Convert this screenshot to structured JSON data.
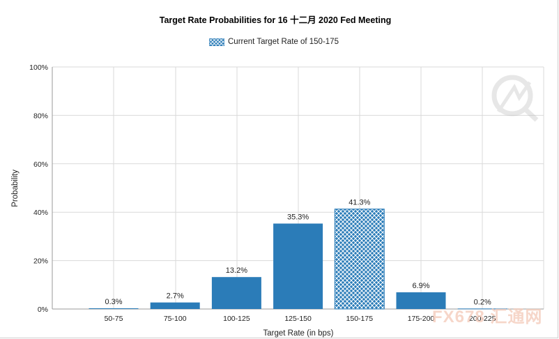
{
  "chart_data": {
    "type": "bar",
    "title": "Target Rate Probabilities for 16 十二月 2020 Fed Meeting",
    "xlabel": "Target Rate (in bps)",
    "ylabel": "Probability",
    "categories": [
      "50-75",
      "75-100",
      "100-125",
      "125-150",
      "150-175",
      "175-200",
      "200-225"
    ],
    "values": [
      0.3,
      2.7,
      13.2,
      35.3,
      41.3,
      6.9,
      0.2
    ],
    "data_labels": [
      "0.3%",
      "2.7%",
      "13.2%",
      "35.3%",
      "41.3%",
      "6.9%",
      "0.2%"
    ],
    "ylim": [
      0,
      100
    ],
    "yticks": [
      0,
      20,
      40,
      60,
      80,
      100
    ],
    "ytick_labels": [
      "0%",
      "20%",
      "40%",
      "60%",
      "80%",
      "100%"
    ],
    "grid": true,
    "legend_position": "top-center",
    "legend": [
      {
        "name": "Current Target Rate of 150-175",
        "pattern": "crosshatch"
      }
    ],
    "highlight_category": "150-175",
    "colors": {
      "bar": "#2b7cb8",
      "highlight": "#2b7cb8",
      "grid": "#d9d9d9"
    }
  },
  "watermark": {
    "text": "FX678 汇通网"
  }
}
